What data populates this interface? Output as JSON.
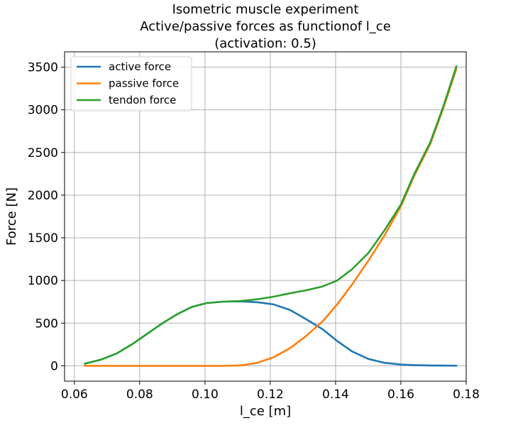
{
  "chart_data": {
    "type": "line",
    "title_lines": [
      "Isometric muscle experiment",
      "Active/passive forces as functionof l_ce",
      "(activation: 0.5)"
    ],
    "xlabel": "l_ce [m]",
    "ylabel": "Force [N]",
    "xlim": [
      0.057,
      0.18
    ],
    "ylim": [
      -180,
      3680
    ],
    "xticks": [
      0.06,
      0.08,
      0.1,
      0.12,
      0.14,
      0.16,
      0.18
    ],
    "xtick_labels": [
      "0.06",
      "0.08",
      "0.10",
      "0.12",
      "0.14",
      "0.16",
      "0.18"
    ],
    "yticks": [
      0,
      500,
      1000,
      1500,
      2000,
      2500,
      3000,
      3500
    ],
    "ytick_labels": [
      "0",
      "500",
      "1000",
      "1500",
      "2000",
      "2500",
      "3000",
      "3500"
    ],
    "grid": true,
    "legend_position": "top-left",
    "x": [
      0.0632,
      0.068,
      0.073,
      0.078,
      0.0825,
      0.087,
      0.0915,
      0.096,
      0.1005,
      0.1055,
      0.111,
      0.116,
      0.121,
      0.126,
      0.131,
      0.136,
      0.1405,
      0.145,
      0.15,
      0.155,
      0.16,
      0.164,
      0.169,
      0.173,
      0.177
    ],
    "series": [
      {
        "name": "active force",
        "color": "#1f77b4",
        "values": [
          25,
          70,
          145,
          260,
          380,
          500,
          605,
          690,
          735,
          752,
          755,
          745,
          720,
          655,
          545,
          430,
          290,
          170,
          80,
          35,
          15,
          8,
          4,
          2,
          1
        ]
      },
      {
        "name": "passive force",
        "color": "#ff7f0e",
        "values": [
          0,
          0,
          0,
          0,
          0,
          0,
          0,
          0,
          0,
          0,
          5,
          35,
          100,
          205,
          350,
          520,
          720,
          950,
          1230,
          1530,
          1870,
          2220,
          2600,
          3020,
          3480
        ]
      },
      {
        "name": "tendon force",
        "color": "#2ca02c",
        "values": [
          25,
          70,
          145,
          260,
          380,
          500,
          605,
          690,
          735,
          752,
          760,
          780,
          810,
          850,
          885,
          930,
          1000,
          1130,
          1320,
          1590,
          1890,
          2240,
          2620,
          3040,
          3510
        ]
      }
    ]
  }
}
